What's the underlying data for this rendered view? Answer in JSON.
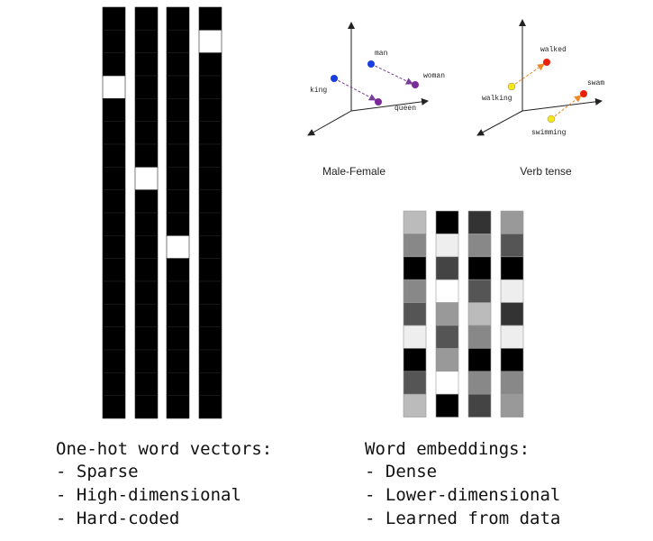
{
  "one_hot": {
    "heading": "One-hot word vectors:",
    "points": [
      "- Sparse",
      "- High-dimensional",
      "- Hard-coded"
    ]
  },
  "embeddings": {
    "heading": "Word embeddings:",
    "points": [
      "- Dense",
      "- Lower-dimensional",
      "- Learned from data"
    ]
  },
  "plots": [
    {
      "caption": "Male-Female",
      "labels": [
        "man",
        "woman",
        "king",
        "queen"
      ]
    },
    {
      "caption": "Verb tense",
      "labels": [
        "walked",
        "swam",
        "walking",
        "swimming"
      ]
    }
  ]
}
